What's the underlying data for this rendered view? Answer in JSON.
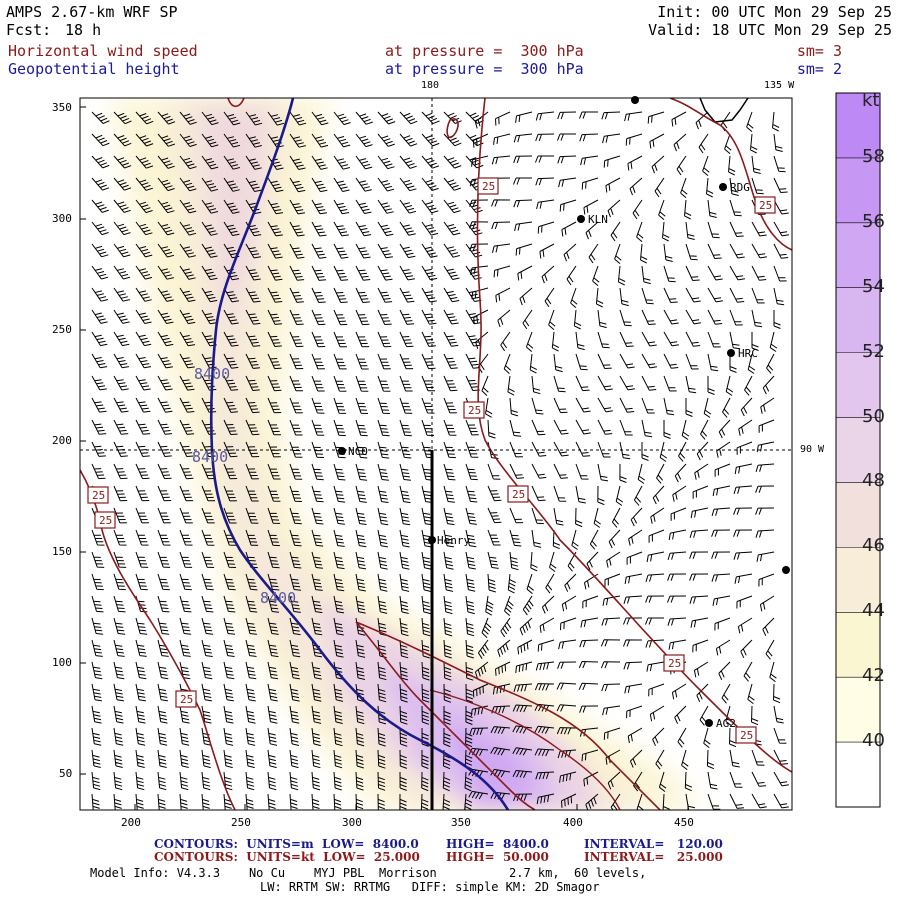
{
  "header": {
    "model": "AMPS 2.67-km WRF SP",
    "fcst_label": "Fcst:",
    "fcst_value": "18 h",
    "init": "Init: 00 UTC Mon 29 Sep 25",
    "valid": "Valid: 18 UTC Mon 29 Sep 25",
    "field1_name": "Horizontal wind speed",
    "field1_level": "at pressure =  300 hPa",
    "field1_sm": "sm= 3",
    "field2_name": "Geopotential height",
    "field2_level": "at pressure =  300 hPa",
    "field2_sm": "sm= 2"
  },
  "axes": {
    "x_ticks": [
      "200",
      "250",
      "300",
      "350",
      "400",
      "450"
    ],
    "y_ticks": [
      "50",
      "100",
      "150",
      "200",
      "250",
      "300",
      "350"
    ],
    "meridian_labels": [
      "180",
      "135 W",
      "90 W"
    ]
  },
  "colorbar": {
    "unit": "kt",
    "labels": [
      "40",
      "42",
      "44",
      "46",
      "48",
      "50",
      "52",
      "54",
      "56",
      "58"
    ],
    "colors": [
      "#fffde6",
      "#fbf6d2",
      "#f7edd8",
      "#f1e0dc",
      "#ead4e8",
      "#e2c6ee",
      "#d8b6f0",
      "#cfa7f2",
      "#c798f3",
      "#bd89f4"
    ]
  },
  "stations": [
    "KLN",
    "RDG",
    "HRC",
    "NCO",
    "Henry",
    "AG2"
  ],
  "contour_labels": {
    "height": "8400",
    "wind": "25"
  },
  "footer": {
    "c1_a": "CONTOURS:  UNITS=m  LOW=  8400.0",
    "c1_b": "HIGH=  8400.0",
    "c1_c": "INTERVAL=   120.00",
    "c2_a": "CONTOURS:  UNITS=kt  LOW=  25.000",
    "c2_b": "HIGH=  50.000",
    "c2_c": "INTERVAL=   25.000",
    "info1": "Model Info: V4.3.3    No Cu    MYJ PBL  Morrison          2.7 km,  60 levels,",
    "info2": "LW: RRTM SW: RRTMG   DIFF: simple KM: 2D Smagor"
  }
}
